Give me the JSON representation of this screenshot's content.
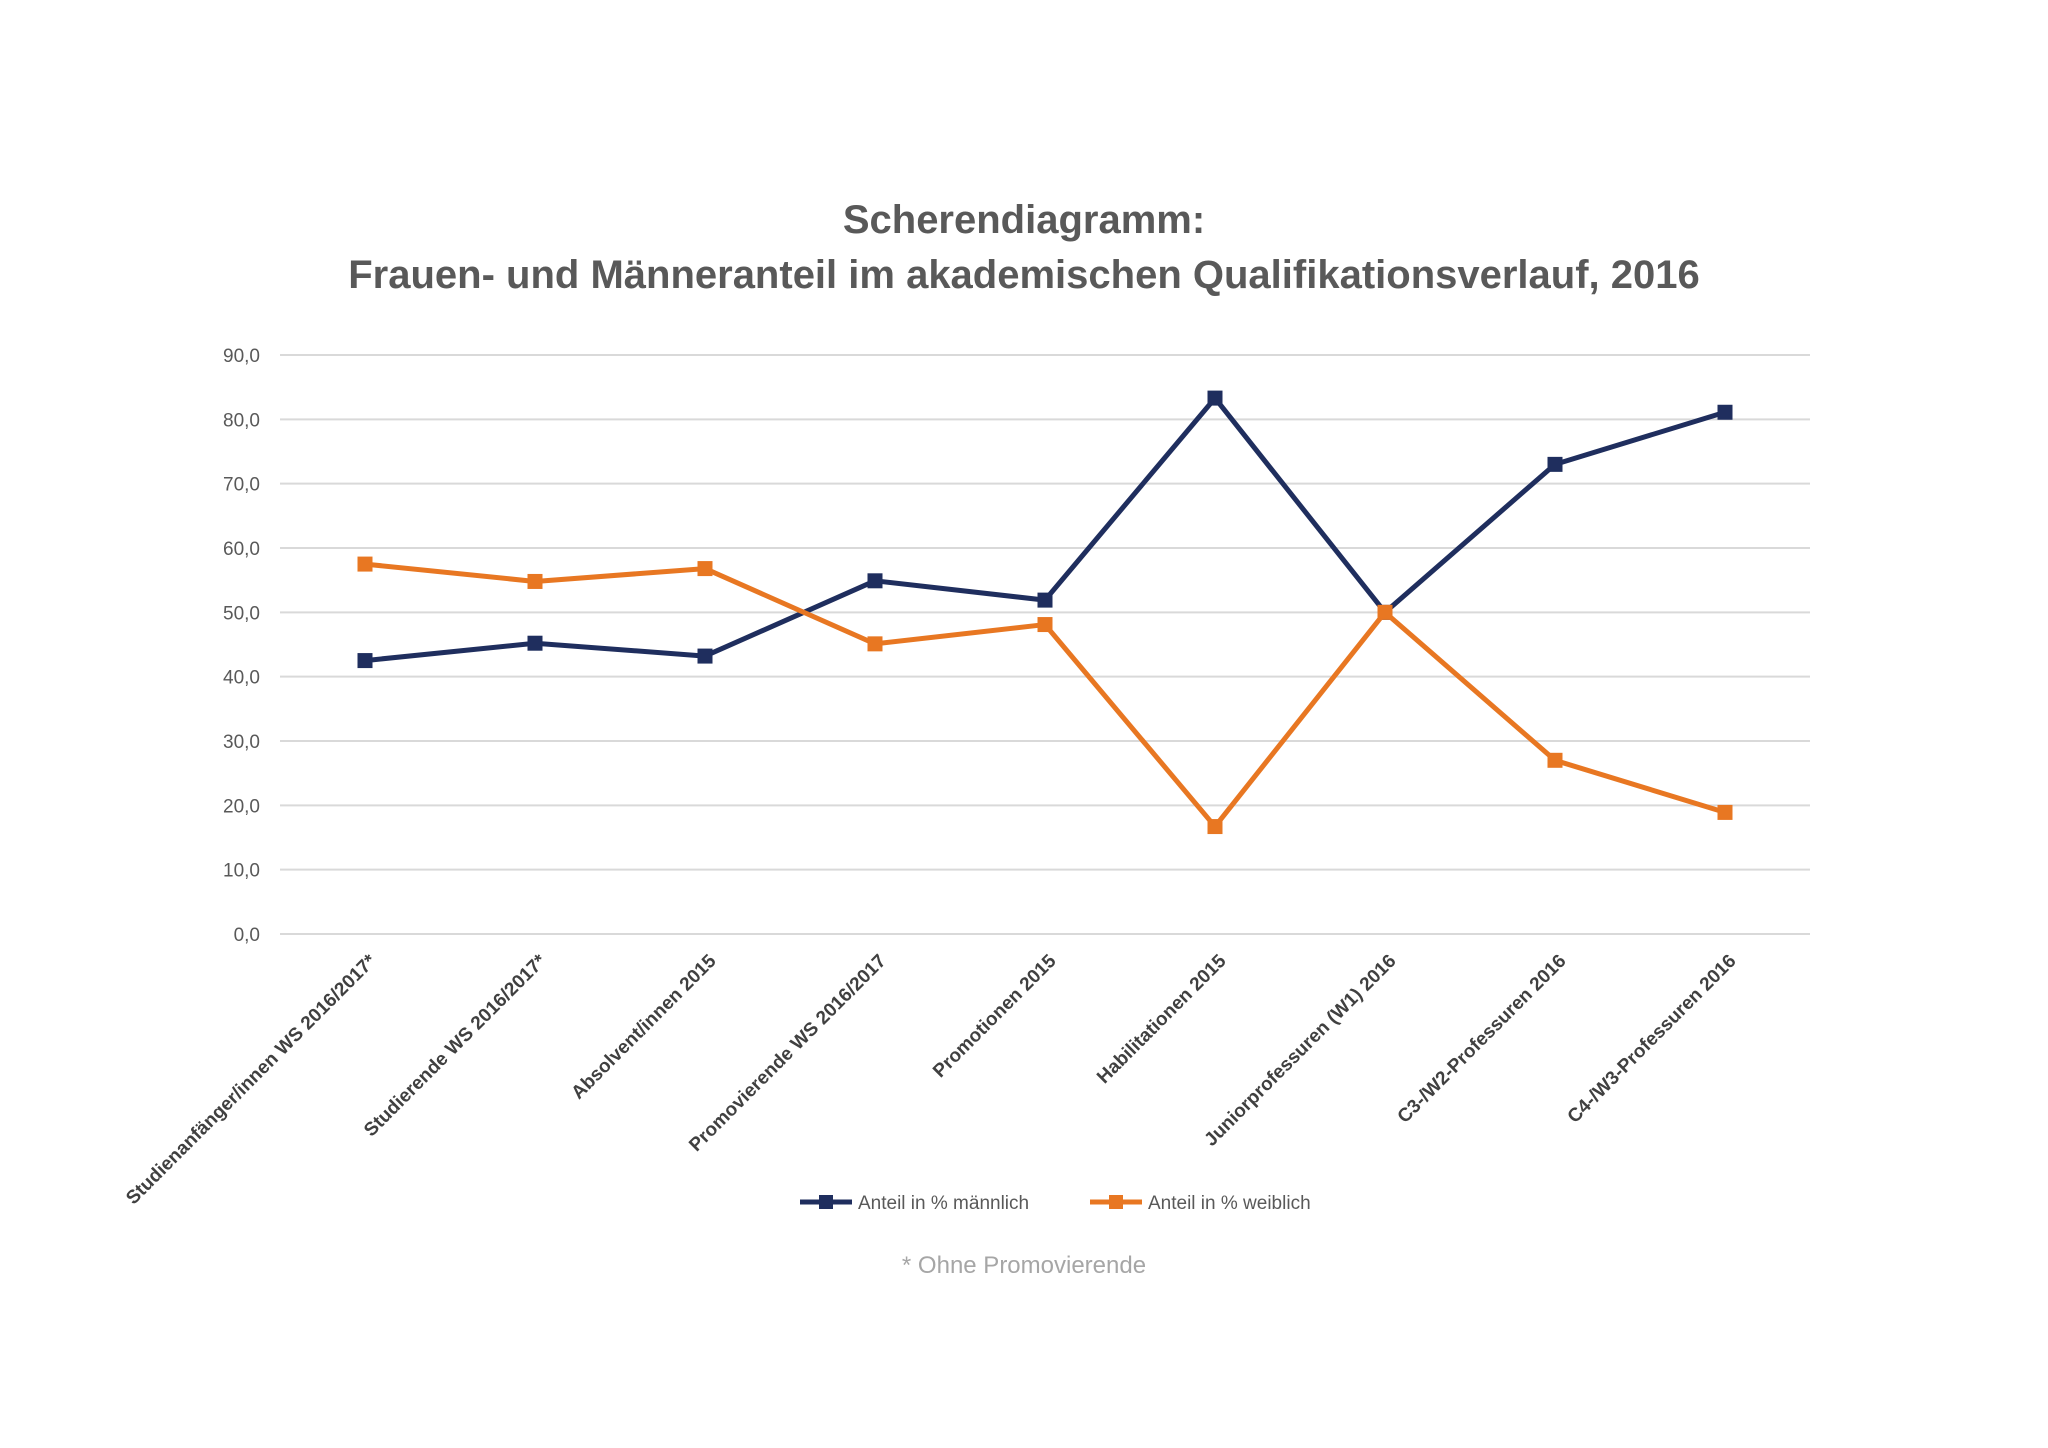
{
  "chart_data": {
    "type": "line",
    "title": "Scherendiagramm:",
    "subtitle": "Frauen- und Männeranteil im akademischen Qualifikationsverlauf, 2016",
    "ylim": [
      0,
      90
    ],
    "yticks": [
      "0,0",
      "10,0",
      "20,0",
      "30,0",
      "40,0",
      "50,0",
      "60,0",
      "70,0",
      "80,0",
      "90,0"
    ],
    "categories": [
      "Studienanfänger/innen WS 2016/2017*",
      "Studierende WS 2016/2017*",
      "Absolvent/innen 2015",
      "Promovierende WS 2016/2017",
      "Promotionen 2015",
      "Habilitationen 2015",
      "Juniorprofessuren (W1) 2016",
      "C3-/W2-Professuren 2016",
      "C4-/W3-Professuren 2016"
    ],
    "series": [
      {
        "name": "Anteil in % männlich",
        "color": "#1f2e5e",
        "values": [
          42.5,
          45.2,
          43.2,
          54.9,
          51.9,
          83.3,
          50.0,
          73.0,
          81.1
        ]
      },
      {
        "name": "Anteil in % weiblich",
        "color": "#e87722",
        "values": [
          57.5,
          54.8,
          56.8,
          45.1,
          48.1,
          16.7,
          50.0,
          27.0,
          18.9
        ]
      }
    ],
    "grid": true,
    "legend_position": "bottom",
    "footnote": "* Ohne Promovierende"
  }
}
